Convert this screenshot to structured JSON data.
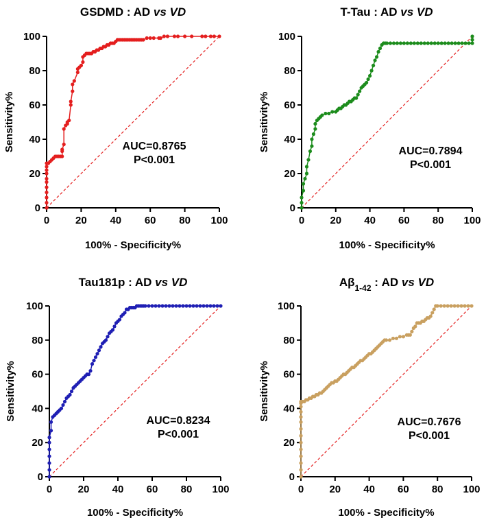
{
  "chart_data": [
    {
      "type": "line",
      "title": "GSDMD : AD vs VD",
      "title_parts": [
        "GSDMD",
        " : AD ",
        "vs",
        " VD"
      ],
      "xlabel": "100% - Specificity%",
      "ylabel": "Sensitivity%",
      "xlim": [
        0,
        100
      ],
      "ylim": [
        0,
        100
      ],
      "xticks": [
        "0",
        "20",
        "40",
        "60",
        "80",
        "100"
      ],
      "yticks": [
        "0",
        "20",
        "40",
        "60",
        "80",
        "100"
      ],
      "auc_text": "AUC=0.8765",
      "p_text": "P<0.001",
      "color": "#e41e1e",
      "reference_line_color": "#e41e1e",
      "series": [
        {
          "name": "ROC curve",
          "x": [
            0,
            0,
            0,
            0,
            0,
            0,
            0,
            0,
            0,
            0,
            0,
            1,
            2,
            3,
            4,
            5,
            6,
            7,
            8,
            9,
            9,
            9,
            10,
            10,
            11,
            12,
            12,
            13,
            14,
            14,
            15,
            15,
            16,
            18,
            18,
            19,
            20,
            21,
            21,
            22,
            23,
            24,
            25,
            26,
            27,
            28,
            29,
            30,
            31,
            32,
            33,
            34,
            35,
            36,
            37,
            38,
            39,
            40,
            41,
            42,
            43,
            44,
            45,
            46,
            47,
            48,
            49,
            50,
            51,
            52,
            53,
            54,
            55,
            56,
            58,
            60,
            62,
            65,
            66,
            68,
            70,
            74,
            76,
            80,
            84,
            90,
            92,
            95,
            97,
            100
          ],
          "y": [
            0,
            3,
            6,
            9,
            12,
            15,
            17,
            20,
            22,
            24,
            26,
            26,
            27,
            28,
            29,
            30,
            30,
            30,
            30,
            30,
            33,
            34,
            37,
            46,
            48,
            49,
            50,
            51,
            60,
            62,
            68,
            72,
            74,
            79,
            81,
            82,
            83,
            85,
            88,
            89,
            90,
            90,
            90,
            90,
            91,
            91,
            92,
            92,
            93,
            93,
            94,
            94,
            95,
            95,
            96,
            96,
            96,
            97,
            98,
            98,
            98,
            98,
            98,
            98,
            98,
            98,
            98,
            98,
            98,
            98,
            98,
            98,
            98,
            98,
            99,
            99,
            99,
            99,
            99,
            100,
            100,
            100,
            100,
            100,
            100,
            100,
            100,
            100,
            100,
            100
          ]
        }
      ]
    },
    {
      "type": "line",
      "title": "T-Tau : AD vs VD",
      "title_parts": [
        "T-Tau",
        " : AD ",
        "vs",
        " VD"
      ],
      "xlabel": "100% - Specificity%",
      "ylabel": "Sensitivity%",
      "xlim": [
        0,
        100
      ],
      "ylim": [
        0,
        100
      ],
      "xticks": [
        "0",
        "20",
        "40",
        "60",
        "80",
        "100"
      ],
      "yticks": [
        "0",
        "20",
        "40",
        "60",
        "80",
        "100"
      ],
      "auc_text": "AUC=0.7894",
      "p_text": "P<0.001",
      "color": "#1c8c1c",
      "reference_line_color": "#e41e1e",
      "series": [
        {
          "name": "ROC curve",
          "x": [
            0,
            0,
            0,
            1,
            1,
            2,
            3,
            3,
            4,
            5,
            6,
            6,
            7,
            8,
            8,
            9,
            10,
            11,
            12,
            14,
            16,
            18,
            20,
            21,
            22,
            23,
            24,
            25,
            26,
            27,
            28,
            29,
            30,
            31,
            32,
            33,
            34,
            35,
            36,
            37,
            38,
            39,
            40,
            41,
            42,
            43,
            44,
            45,
            46,
            47,
            48,
            49,
            50,
            52,
            54,
            56,
            58,
            60,
            62,
            64,
            66,
            68,
            70,
            72,
            74,
            76,
            78,
            80,
            82,
            84,
            86,
            88,
            90,
            92,
            94,
            96,
            98,
            100,
            100,
            100
          ],
          "y": [
            0,
            3,
            6,
            10,
            14,
            17,
            20,
            24,
            28,
            33,
            36,
            40,
            43,
            46,
            49,
            51,
            52,
            53,
            54,
            55,
            55,
            56,
            56,
            57,
            58,
            58,
            59,
            60,
            60,
            61,
            62,
            62,
            63,
            64,
            64,
            66,
            68,
            70,
            71,
            72,
            73,
            75,
            77,
            80,
            83,
            86,
            88,
            91,
            93,
            95,
            96,
            96,
            96,
            96,
            96,
            96,
            96,
            96,
            96,
            96,
            96,
            96,
            96,
            96,
            96,
            96,
            96,
            96,
            96,
            96,
            96,
            96,
            96,
            96,
            96,
            96,
            96,
            96,
            98,
            100
          ]
        }
      ]
    },
    {
      "type": "line",
      "title": "Tau181p : AD vs VD",
      "title_parts": [
        "Tau181p",
        " : AD ",
        "vs",
        " VD"
      ],
      "xlabel": "100% - Specificity%",
      "ylabel": "Sensitivity%",
      "xlim": [
        0,
        100
      ],
      "ylim": [
        0,
        100
      ],
      "xticks": [
        "0",
        "20",
        "40",
        "60",
        "80",
        "100"
      ],
      "yticks": [
        "0",
        "20",
        "40",
        "60",
        "80",
        "100"
      ],
      "auc_text": "AUC=0.8234",
      "p_text": "P<0.001",
      "color": "#1f1fb4",
      "reference_line_color": "#e41e1e",
      "series": [
        {
          "name": "ROC curve",
          "x": [
            0,
            0,
            0,
            0,
            0,
            0,
            0,
            1,
            1,
            2,
            3,
            4,
            5,
            6,
            7,
            8,
            9,
            10,
            11,
            12,
            13,
            14,
            15,
            16,
            17,
            18,
            19,
            20,
            21,
            22,
            23,
            24,
            25,
            26,
            27,
            28,
            29,
            30,
            31,
            32,
            33,
            34,
            35,
            36,
            37,
            38,
            39,
            40,
            41,
            42,
            43,
            44,
            45,
            46,
            47,
            48,
            49,
            50,
            51,
            52,
            53,
            54,
            55,
            56,
            58,
            60,
            62,
            64,
            66,
            68,
            70,
            72,
            74,
            76,
            78,
            80,
            82,
            84,
            86,
            88,
            90,
            92,
            94,
            96,
            98,
            100
          ],
          "y": [
            0,
            4,
            8,
            12,
            16,
            20,
            23,
            27,
            32,
            35,
            36,
            37,
            38,
            39,
            40,
            42,
            44,
            46,
            47,
            48,
            50,
            52,
            53,
            54,
            55,
            56,
            57,
            58,
            59,
            60,
            60,
            62,
            66,
            68,
            70,
            72,
            74,
            76,
            78,
            79,
            80,
            82,
            84,
            85,
            86,
            88,
            90,
            91,
            92,
            94,
            95,
            96,
            98,
            98,
            99,
            99,
            99,
            99,
            100,
            100,
            100,
            100,
            100,
            100,
            100,
            100,
            100,
            100,
            100,
            100,
            100,
            100,
            100,
            100,
            100,
            100,
            100,
            100,
            100,
            100,
            100,
            100,
            100,
            100,
            100,
            100
          ]
        }
      ]
    },
    {
      "type": "line",
      "title": "Aβ1-42 : AD vs VD",
      "title_parts": [
        "Aβ",
        "1-42",
        " : AD ",
        "vs",
        " VD"
      ],
      "xlabel": "100% - Specificity%",
      "ylabel": "Sensitivity%",
      "xlim": [
        0,
        100
      ],
      "ylim": [
        0,
        100
      ],
      "xticks": [
        "0",
        "20",
        "40",
        "60",
        "80",
        "100"
      ],
      "yticks": [
        "0",
        "20",
        "40",
        "60",
        "80",
        "100"
      ],
      "auc_text": "AUC=0.7676",
      "p_text": "P<0.001",
      "color": "#c9a060",
      "reference_line_color": "#e41e1e",
      "series": [
        {
          "name": "ROC curve",
          "x": [
            0,
            0,
            0,
            0,
            0,
            0,
            0,
            0,
            0,
            0,
            0,
            0,
            0,
            0,
            1,
            2,
            3,
            4,
            5,
            6,
            7,
            8,
            9,
            10,
            11,
            12,
            13,
            14,
            15,
            16,
            17,
            18,
            19,
            20,
            21,
            22,
            23,
            24,
            25,
            26,
            27,
            28,
            29,
            30,
            31,
            32,
            33,
            34,
            35,
            36,
            37,
            38,
            39,
            40,
            41,
            42,
            43,
            44,
            45,
            46,
            47,
            48,
            49,
            50,
            52,
            54,
            56,
            58,
            60,
            62,
            63,
            64,
            65,
            66,
            67,
            68,
            69,
            70,
            71,
            72,
            73,
            74,
            75,
            76,
            77,
            78,
            79,
            80,
            82,
            84,
            86,
            88,
            90,
            92,
            94,
            96,
            98,
            100
          ],
          "y": [
            0,
            4,
            8,
            12,
            16,
            20,
            24,
            28,
            32,
            35,
            38,
            41,
            43,
            44,
            44,
            44,
            45,
            45,
            46,
            46,
            47,
            47,
            48,
            48,
            49,
            49,
            50,
            51,
            52,
            53,
            54,
            55,
            55,
            56,
            56,
            57,
            58,
            59,
            60,
            60,
            61,
            62,
            63,
            64,
            64,
            65,
            66,
            67,
            68,
            68,
            69,
            70,
            71,
            72,
            72,
            73,
            74,
            75,
            76,
            77,
            78,
            79,
            80,
            80,
            80,
            81,
            81,
            82,
            82,
            83,
            83,
            83,
            85,
            87,
            88,
            90,
            90,
            90,
            91,
            91,
            92,
            93,
            93,
            94,
            96,
            98,
            100,
            100,
            100,
            100,
            100,
            100,
            100,
            100,
            100,
            100,
            100,
            100
          ]
        }
      ]
    }
  ]
}
